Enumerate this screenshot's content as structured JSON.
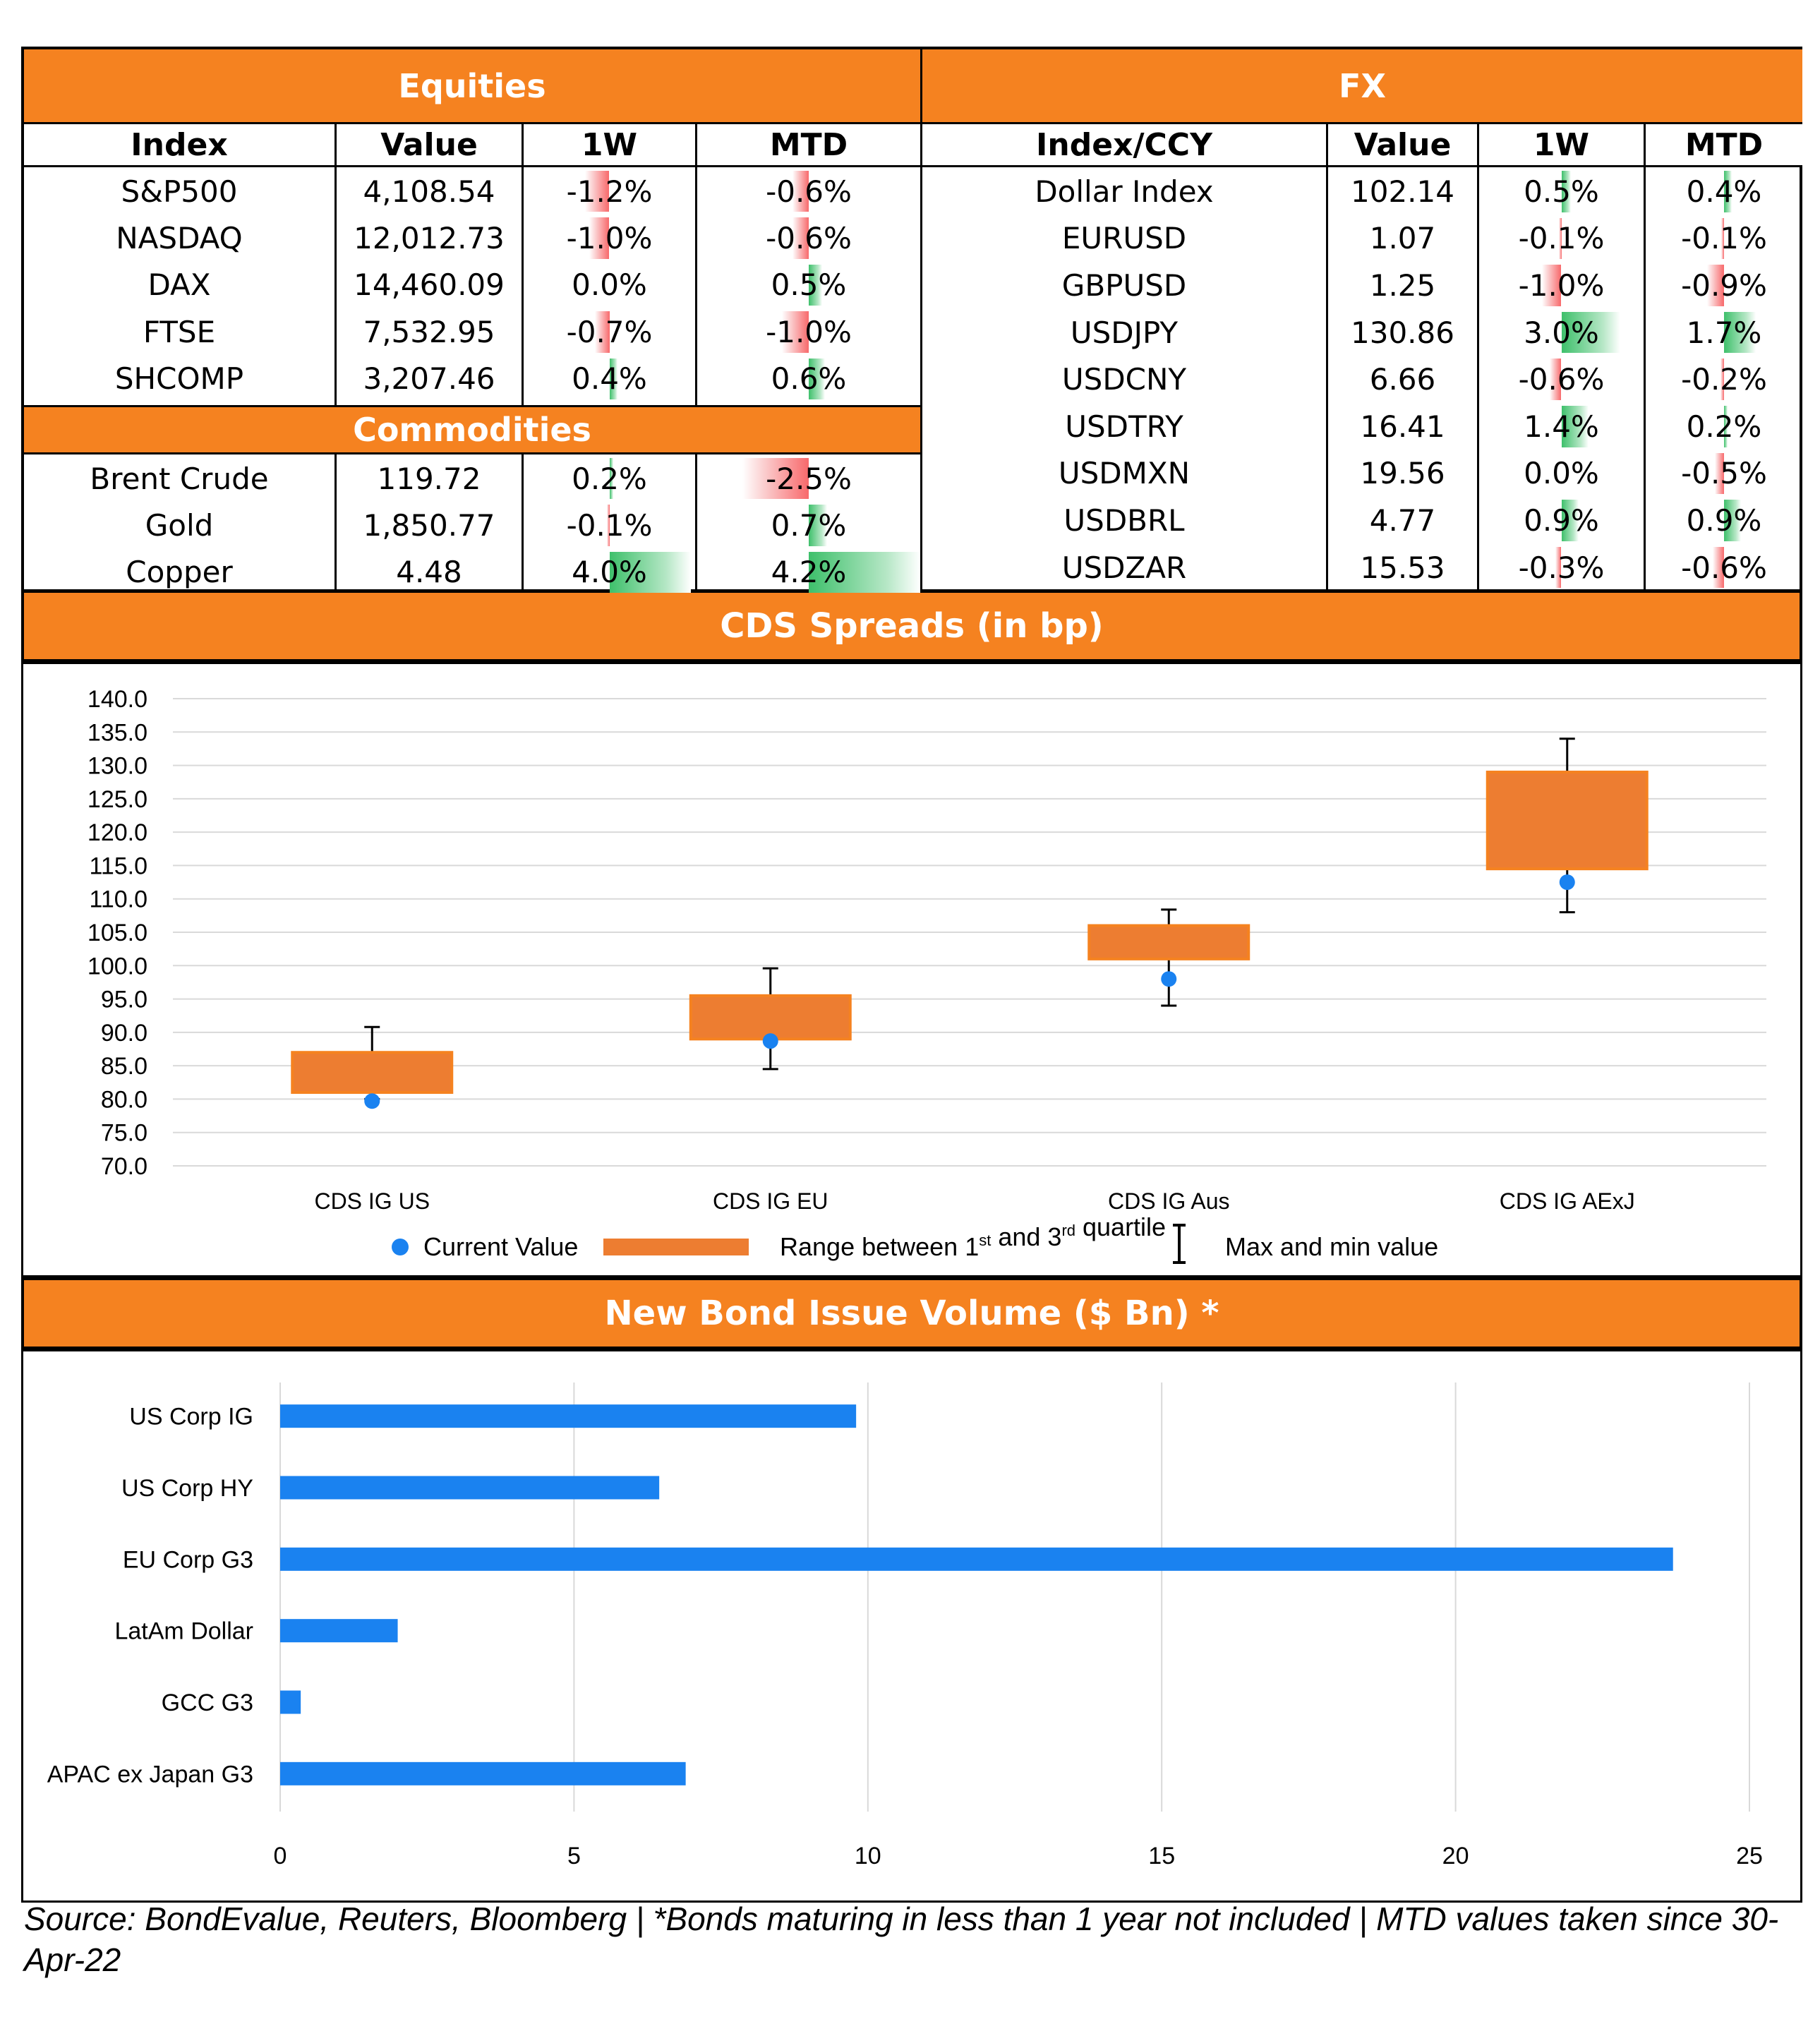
{
  "equities": {
    "title": "Equities",
    "headers": [
      "Index",
      "Value",
      "1W",
      "MTD"
    ],
    "rows": [
      {
        "name": "S&P500",
        "value": "4,108.54",
        "w1": "-1.2%",
        "mtd": "-0.6%",
        "w1_num": -1.2,
        "mtd_num": -0.6
      },
      {
        "name": "NASDAQ",
        "value": "12,012.73",
        "w1": "-1.0%",
        "mtd": "-0.6%",
        "w1_num": -1.0,
        "mtd_num": -0.6
      },
      {
        "name": "DAX",
        "value": "14,460.09",
        "w1": "0.0%",
        "mtd": "0.5%",
        "w1_num": 0.0,
        "mtd_num": 0.5
      },
      {
        "name": "FTSE",
        "value": "7,532.95",
        "w1": "-0.7%",
        "mtd": "-1.0%",
        "w1_num": -0.7,
        "mtd_num": -1.0
      },
      {
        "name": "SHCOMP",
        "value": "3,207.46",
        "w1": "0.4%",
        "mtd": "0.6%",
        "w1_num": 0.4,
        "mtd_num": 0.6
      }
    ]
  },
  "commodities": {
    "title": "Commodities",
    "rows": [
      {
        "name": "Brent Crude",
        "value": "119.72",
        "w1": "0.2%",
        "mtd": "-2.5%",
        "w1_num": 0.2,
        "mtd_num": -2.5
      },
      {
        "name": "Gold",
        "value": "1,850.77",
        "w1": "-0.1%",
        "mtd": "0.7%",
        "w1_num": -0.1,
        "mtd_num": 0.7
      },
      {
        "name": "Copper",
        "value": "4.48",
        "w1": "4.0%",
        "mtd": "4.2%",
        "w1_num": 4.0,
        "mtd_num": 4.2
      }
    ]
  },
  "fx": {
    "title": "FX",
    "headers": [
      "Index/CCY",
      "Value",
      "1W",
      "MTD"
    ],
    "rows": [
      {
        "name": "Dollar Index",
        "value": "102.14",
        "w1": "0.5%",
        "mtd": "0.4%",
        "w1_num": 0.5,
        "mtd_num": 0.4
      },
      {
        "name": "EURUSD",
        "value": "1.07",
        "w1": "-0.1%",
        "mtd": "-0.1%",
        "w1_num": -0.1,
        "mtd_num": -0.1
      },
      {
        "name": "GBPUSD",
        "value": "1.25",
        "w1": "-1.0%",
        "mtd": "-0.9%",
        "w1_num": -1.0,
        "mtd_num": -0.9
      },
      {
        "name": "USDJPY",
        "value": "130.86",
        "w1": "3.0%",
        "mtd": "1.7%",
        "w1_num": 3.0,
        "mtd_num": 1.7
      },
      {
        "name": "USDCNY",
        "value": "6.66",
        "w1": "-0.6%",
        "mtd": "-0.2%",
        "w1_num": -0.6,
        "mtd_num": -0.2
      },
      {
        "name": "USDTRY",
        "value": "16.41",
        "w1": "1.4%",
        "mtd": "0.2%",
        "w1_num": 1.4,
        "mtd_num": 0.2
      },
      {
        "name": "USDMXN",
        "value": "19.56",
        "w1": "0.0%",
        "mtd": "-0.5%",
        "w1_num": 0.0,
        "mtd_num": -0.5
      },
      {
        "name": "USDBRL",
        "value": "4.77",
        "w1": "0.9%",
        "mtd": "0.9%",
        "w1_num": 0.9,
        "mtd_num": 0.9
      },
      {
        "name": "USDZAR",
        "value": "15.53",
        "w1": "-0.3%",
        "mtd": "-0.6%",
        "w1_num": -0.3,
        "mtd_num": -0.6
      }
    ]
  },
  "colors": {
    "header_orange": "#f58220",
    "box_orange": "#ed7d31",
    "dot_blue": "#1a82f0",
    "bar_blue": "#1a82f0",
    "neg_red": "#f8696b",
    "pos_green": "#3ec06b"
  },
  "chart_data": [
    {
      "type": "box",
      "title": "CDS Spreads (in bp)",
      "categories": [
        "CDS IG US",
        "CDS IG EU",
        "CDS IG Aus",
        "CDS IG AExJ"
      ],
      "q1": [
        81.0,
        89.0,
        101.0,
        114.5
      ],
      "q3": [
        87.0,
        95.5,
        106.0,
        129.0
      ],
      "min": [
        80.0,
        84.5,
        94.0,
        108.0
      ],
      "max": [
        90.8,
        99.6,
        108.4,
        134.0
      ],
      "current": [
        79.7,
        88.7,
        98.0,
        112.5
      ],
      "ylim": [
        70,
        140
      ],
      "yticks": [
        "70.0",
        "75.0",
        "80.0",
        "85.0",
        "90.0",
        "95.0",
        "100.0",
        "105.0",
        "110.0",
        "115.0",
        "120.0",
        "125.0",
        "130.0",
        "135.0",
        "140.0"
      ],
      "grid": true,
      "legend": {
        "position": "bottom",
        "current": "Current Value",
        "range_pre": "Range between 1",
        "range_sup1": "st",
        "range_mid": " and 3",
        "range_sup2": "rd",
        "range_post": " quartile",
        "maxmin": "Max and min value"
      }
    },
    {
      "type": "bar",
      "orientation": "horizontal",
      "title": "New Bond Issue Volume ($ Bn) *",
      "categories": [
        "US Corp IG",
        "US Corp HY",
        "EU Corp G3",
        "LatAm Dollar",
        "GCC G3",
        "APAC ex Japan G3"
      ],
      "values": [
        9.8,
        6.45,
        23.7,
        2.0,
        0.35,
        6.9
      ],
      "xlim": [
        0,
        25
      ],
      "xticks": [
        "0",
        "5",
        "10",
        "15",
        "20",
        "25"
      ],
      "grid": true
    }
  ],
  "source": "Source: BondEvalue, Reuters, Bloomberg | *Bonds maturing in less than 1 year not included | MTD values taken since 30-Apr-22"
}
